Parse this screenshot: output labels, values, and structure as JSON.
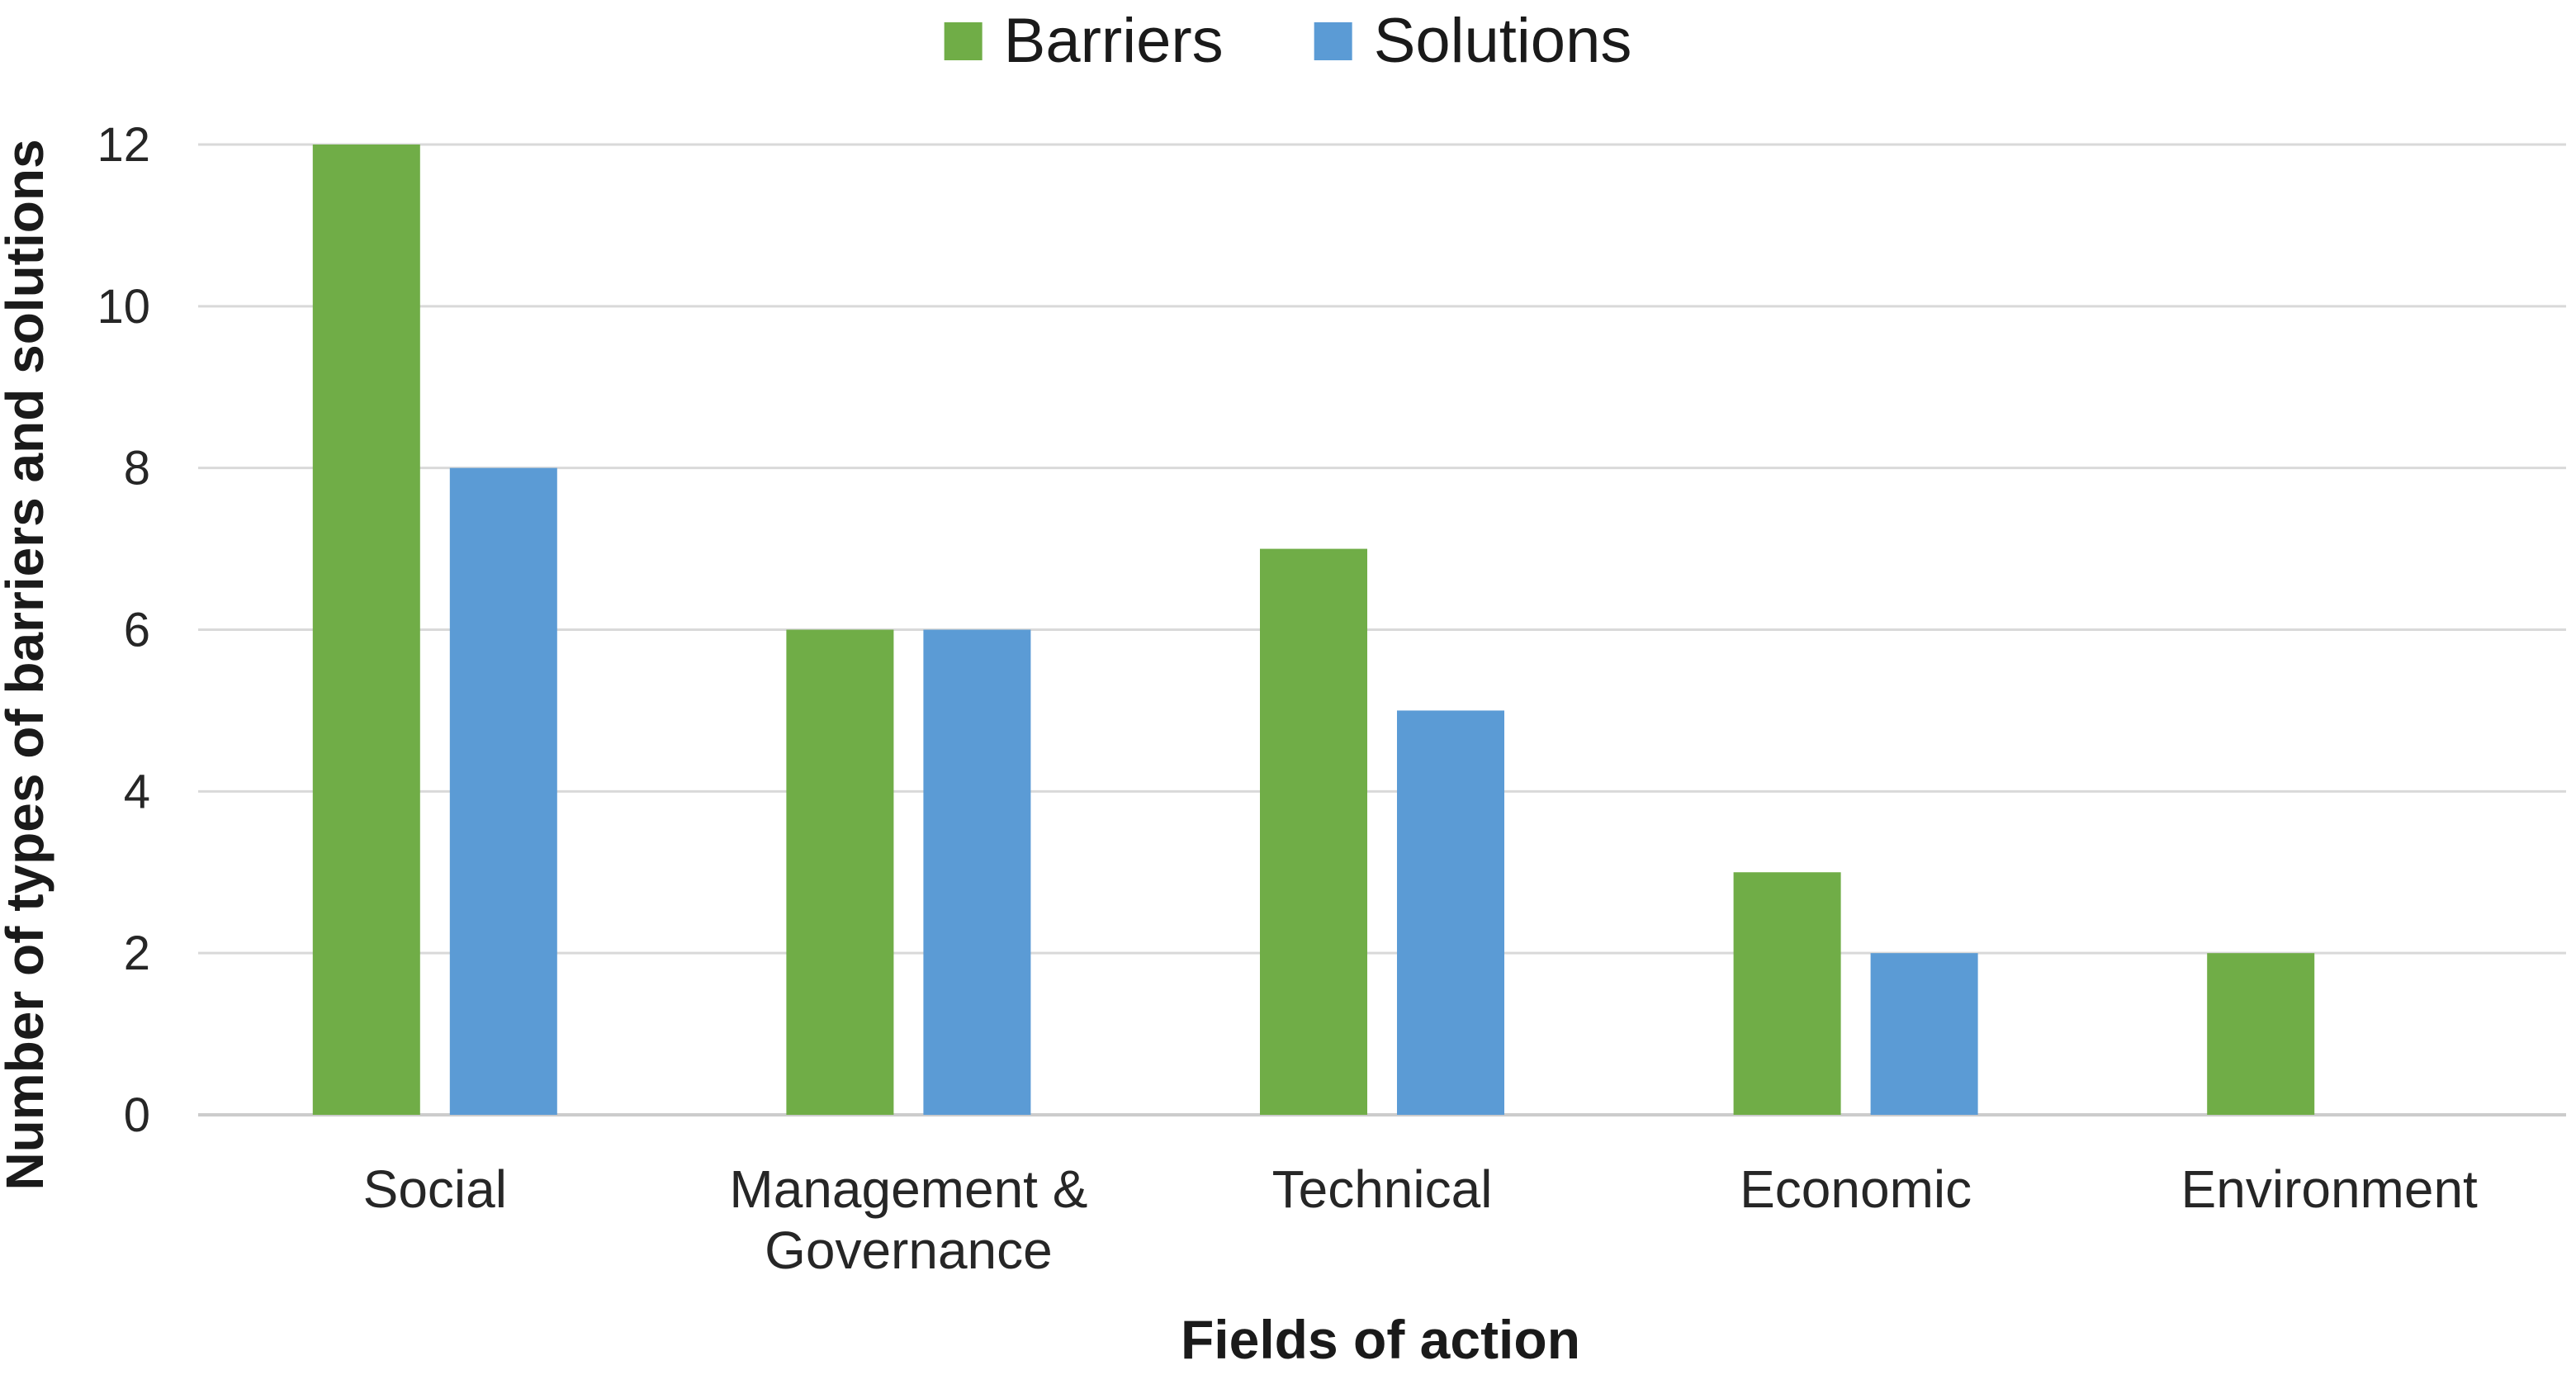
{
  "chart_data": {
    "type": "bar",
    "title": "",
    "categories": [
      "Social",
      "Management &\nGovernance",
      "Technical",
      "Economic",
      "Environment"
    ],
    "series": [
      {
        "name": "Barriers",
        "color": "#70AD47",
        "values": [
          12,
          6,
          7,
          3,
          2
        ]
      },
      {
        "name": "Solutions",
        "color": "#5B9BD5",
        "values": [
          8,
          6,
          5,
          2,
          0
        ]
      }
    ],
    "xlabel": "Fields of action",
    "ylabel": "Number of types of barriers and solutions",
    "ylim": [
      0,
      12
    ],
    "yticks": [
      0,
      2,
      4,
      6,
      8,
      10,
      12
    ],
    "grid": true,
    "legend_position": "top-center",
    "gridline_color": "#d9d9d9",
    "axisline_color": "#cccccc",
    "text_color": "#262626"
  }
}
